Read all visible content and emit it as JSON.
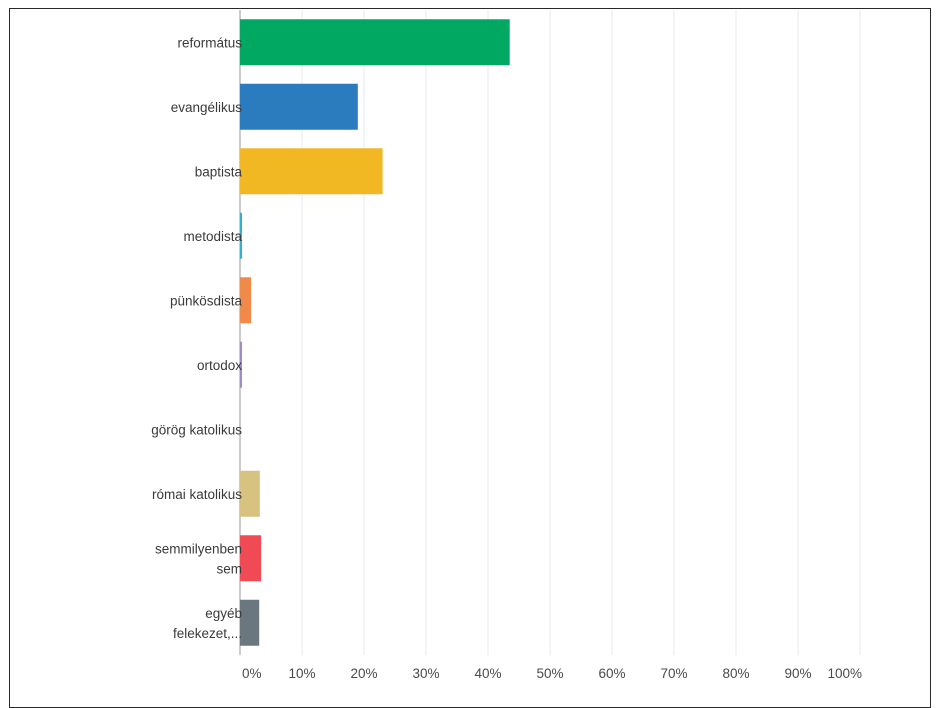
{
  "chart_data": {
    "type": "bar",
    "orientation": "horizontal",
    "categories": [
      "református",
      "evangélikus",
      "baptista",
      "metodista",
      "pünkösdista",
      "ortodox",
      "görög katolikus",
      "római katolikus",
      "semmilyenben sem",
      "egyéb felekezet,..."
    ],
    "category_lines": [
      [
        "református"
      ],
      [
        "evangélikus"
      ],
      [
        "baptista"
      ],
      [
        "metodista"
      ],
      [
        "pünkösdista"
      ],
      [
        "ortodox"
      ],
      [
        "görög katolikus"
      ],
      [
        "római katolikus"
      ],
      [
        "semmilyenben",
        "sem"
      ],
      [
        "egyéb",
        "felekezet,..."
      ]
    ],
    "values": [
      43.5,
      19,
      23,
      0.3,
      1.8,
      0.3,
      0,
      3.2,
      3.4,
      3.1
    ],
    "colors": [
      "#00a862",
      "#2b7bbf",
      "#f2b824",
      "#2ab6d1",
      "#f08a4b",
      "#a08bc9",
      "#9aa0a6",
      "#d8c27f",
      "#f04b55",
      "#6b777e"
    ],
    "x_ticks": [
      "0%",
      "10%",
      "20%",
      "30%",
      "40%",
      "50%",
      "60%",
      "70%",
      "80%",
      "90%",
      "100%"
    ],
    "xlim": [
      0,
      100
    ],
    "grid": true,
    "title": "",
    "xlabel": "",
    "ylabel": ""
  }
}
